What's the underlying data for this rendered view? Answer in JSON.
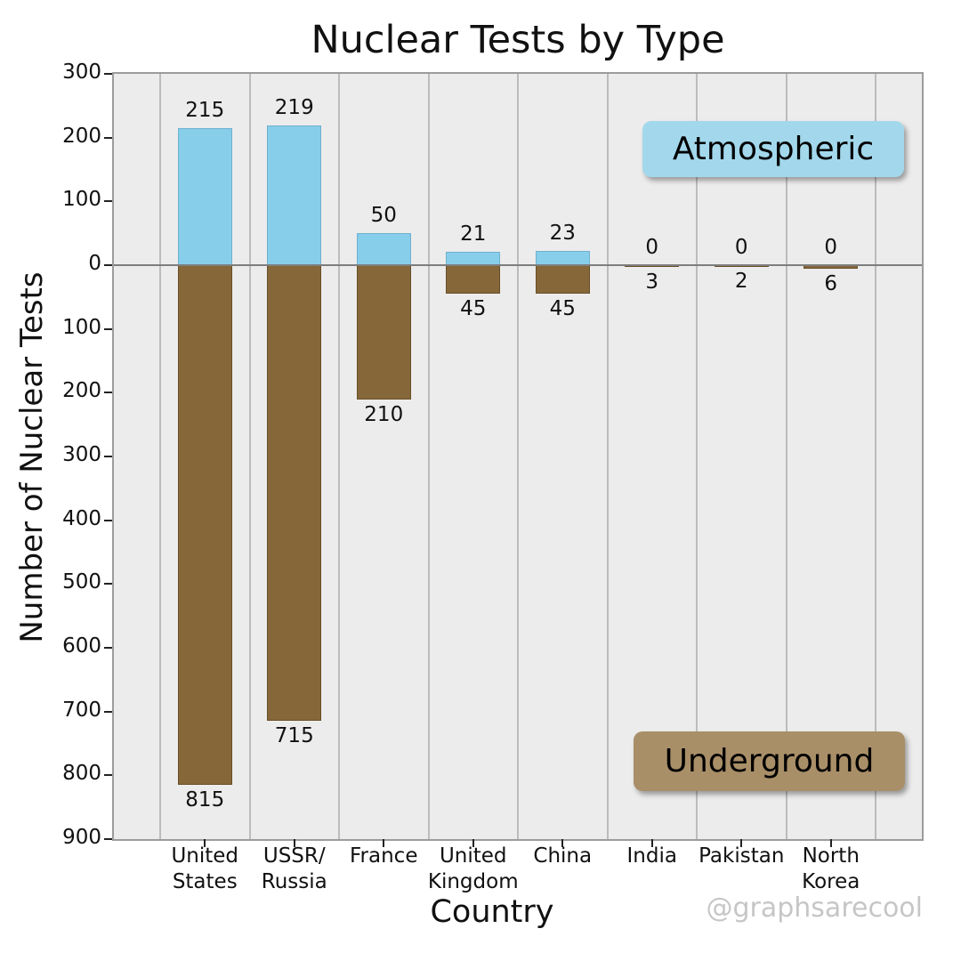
{
  "title": "Nuclear Tests by Type",
  "xlabel": "Country",
  "ylabel": "Number of Nuclear Tests",
  "watermark": "@graphsarecool",
  "legend": {
    "atmospheric": "Atmospheric",
    "underground": "Underground"
  },
  "colors": {
    "atmospheric_bar": "#87ceeb",
    "underground_bar": "#85673a",
    "legend_atmospheric_bg": "#a3d8ec",
    "legend_underground_bg": "#a98f68",
    "axes_background": "#ececec",
    "figure_background": "#ffffff",
    "gridline": "#bcbcbc",
    "zero_line": "#7e7e7e",
    "watermark_text": "#c6c6c6"
  },
  "chart_data": {
    "type": "bar",
    "variant": "diverging-vertical",
    "title": "Nuclear Tests by Type",
    "xlabel": "Country",
    "ylabel": "Number of Nuclear Tests",
    "categories": [
      "United States",
      "USSR/Russia",
      "France",
      "United Kingdom",
      "China",
      "India",
      "Pakistan",
      "North Korea"
    ],
    "category_label_lines": [
      [
        "United",
        "States"
      ],
      [
        "USSR/",
        "Russia"
      ],
      [
        "France"
      ],
      [
        "United",
        "Kingdom"
      ],
      [
        "China"
      ],
      [
        "India"
      ],
      [
        "Pakistan"
      ],
      [
        "North",
        "Korea"
      ]
    ],
    "series": [
      {
        "name": "Atmospheric",
        "direction": "up",
        "values": [
          215,
          219,
          50,
          21,
          23,
          0,
          0,
          0
        ]
      },
      {
        "name": "Underground",
        "direction": "down",
        "values": [
          815,
          715,
          210,
          45,
          45,
          3,
          2,
          6
        ]
      }
    ],
    "ylim": [
      -900,
      300
    ],
    "ytick_values": [
      300,
      200,
      100,
      0,
      -100,
      -200,
      -300,
      -400,
      -500,
      -600,
      -700,
      -800,
      -900
    ],
    "ytick_labels": [
      "300",
      "200",
      "100",
      "0",
      "100",
      "200",
      "300",
      "400",
      "500",
      "600",
      "700",
      "800",
      "900"
    ],
    "grid": "vertical-only",
    "legend_position": "inside-right",
    "value_labels": "above-and-below-bars"
  }
}
